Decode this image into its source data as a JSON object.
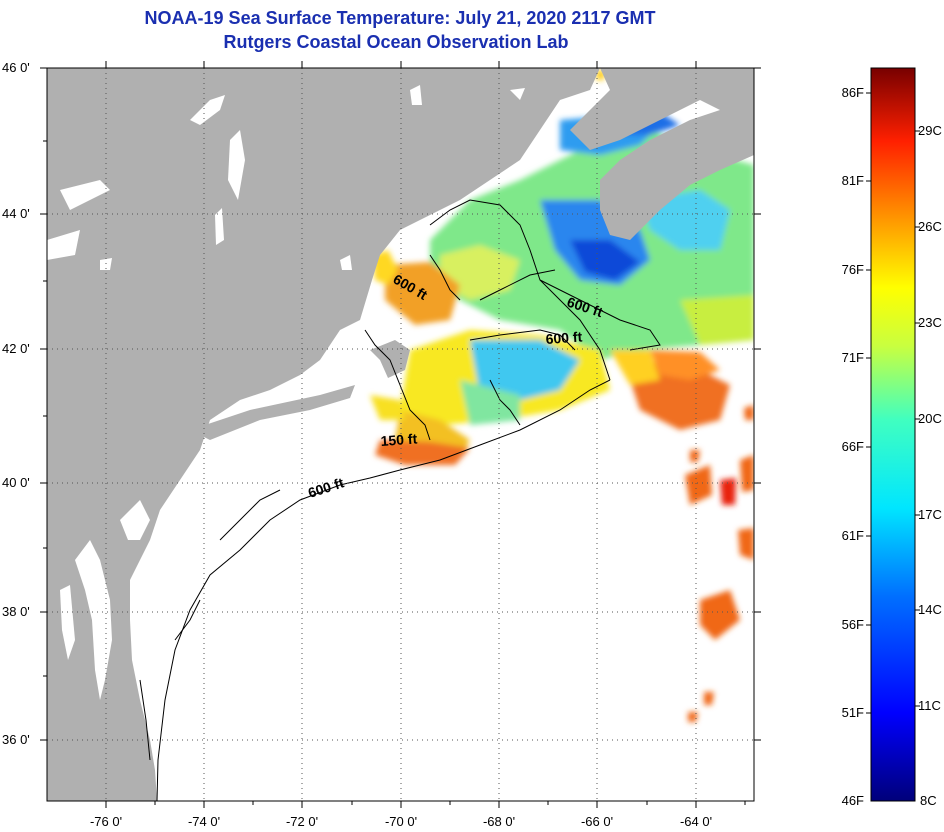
{
  "title_line1": "NOAA-19 Sea Surface Temperature:  July 21, 2020 2117 GMT",
  "title_line2": "Rutgers Coastal Ocean Observation Lab",
  "lat_labels": [
    "46 0'",
    "44 0'",
    "42 0'",
    "40 0'",
    "38 0'",
    "36 0'"
  ],
  "lon_labels": [
    "-76 0'",
    "-74 0'",
    "-72 0'",
    "-70 0'",
    "-68 0'",
    "-66 0'",
    "-64 0'"
  ],
  "contour_labels": [
    "600 ft",
    "600 ft",
    "600 ft",
    "150 ft",
    "600 ft"
  ],
  "colorbar": {
    "fahrenheit": [
      "86F",
      "81F",
      "76F",
      "71F",
      "66F",
      "61F",
      "56F",
      "51F",
      "46F"
    ],
    "celsius": [
      "29C",
      "26C",
      "23C",
      "20C",
      "17C",
      "14C",
      "11C",
      "8C"
    ]
  },
  "colors": {
    "land": "#b0b0b0",
    "title": "#1a2fb0"
  }
}
